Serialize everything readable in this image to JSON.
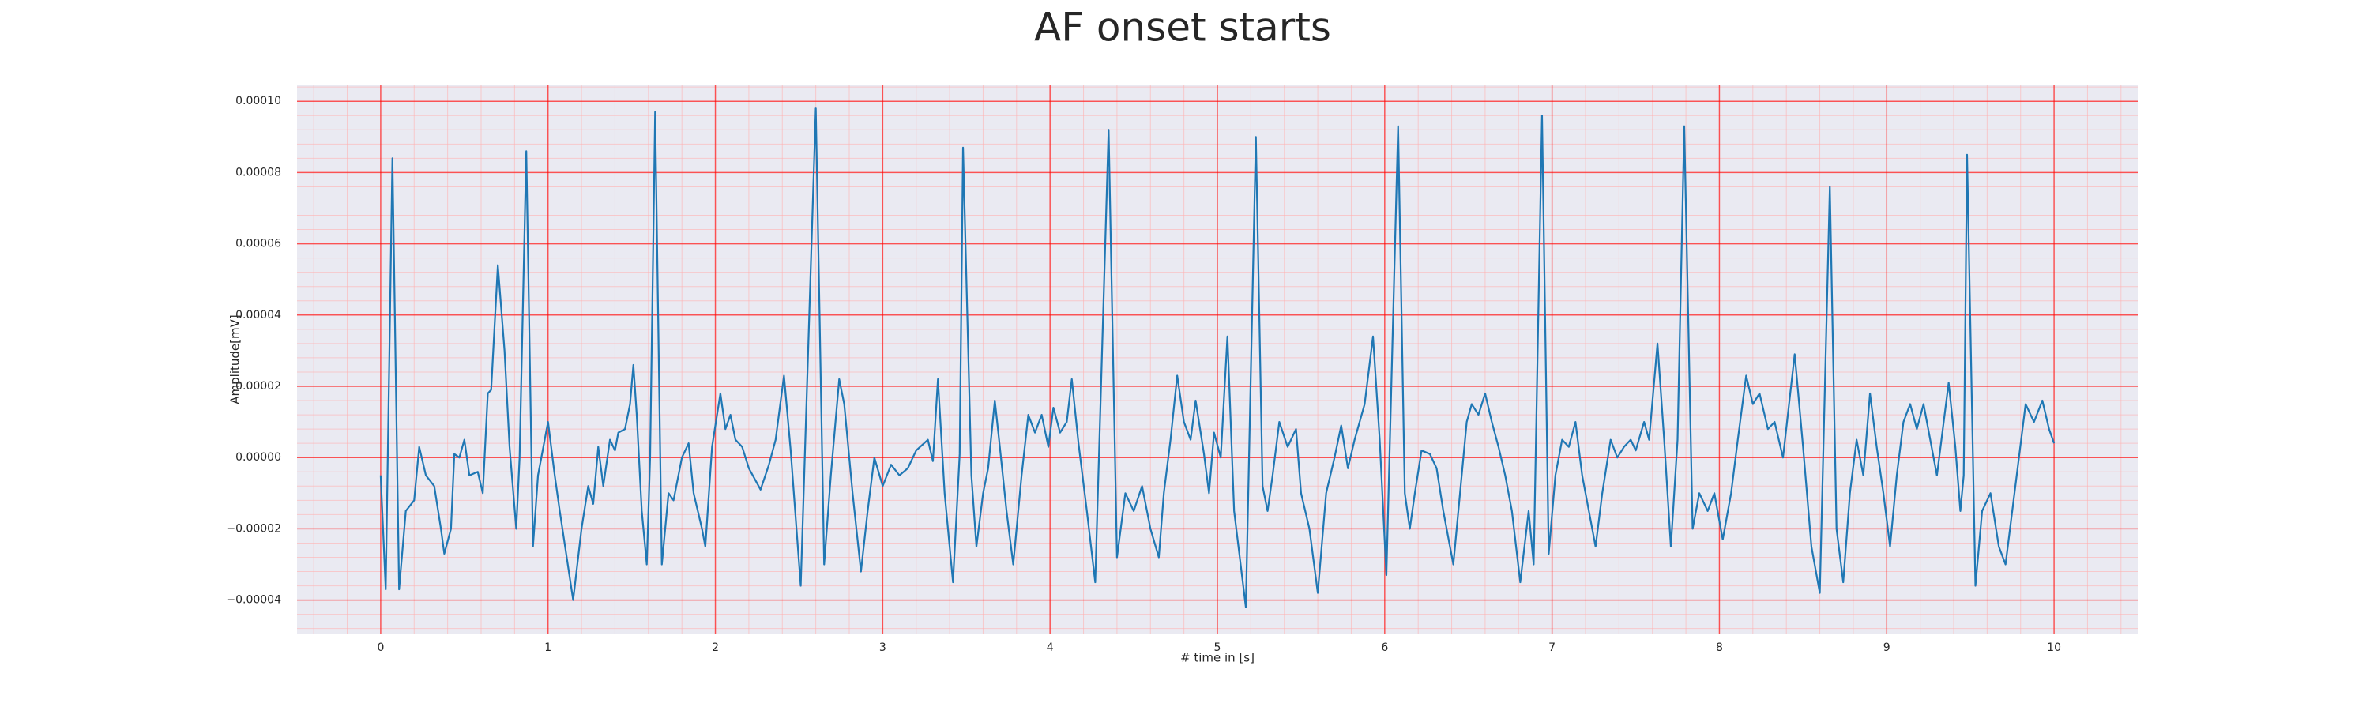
{
  "chart_data": {
    "type": "line",
    "title": "AF onset starts",
    "x_label": "# time in [s]",
    "y_label": "Amplitude[mV]",
    "color": "#1f77b4",
    "background": "#eaeaf2",
    "grid": true,
    "grid_color": "#ff0000",
    "minor_grid": true,
    "minor_grid_color": "#ffb0b0",
    "xlim": [
      -0.5,
      10.5
    ],
    "ylim": [
      -4.94e-05,
      0.0001047
    ],
    "xticks": [
      0,
      1,
      2,
      3,
      4,
      5,
      6,
      7,
      8,
      9,
      10
    ],
    "yticks": [
      {
        "value": -4e-05,
        "label": "−0.00004"
      },
      {
        "value": -2e-05,
        "label": "−0.00002"
      },
      {
        "value": 0,
        "label": "0.00000"
      },
      2e-05,
      4e-05,
      6e-05,
      8e-05,
      {
        "value": 0.0001,
        "label": "0.00010"
      }
    ],
    "x": [
      0,
      0.03,
      0.07,
      0.11,
      0.15,
      0.2,
      0.23,
      0.27,
      0.32,
      0.36,
      0.38,
      0.42,
      0.44,
      0.47,
      0.5,
      0.53,
      0.58,
      0.61,
      0.64,
      0.66,
      0.7,
      0.74,
      0.77,
      0.81,
      0.83,
      0.87,
      0.91,
      0.94,
      1.0,
      1.04,
      1.07,
      1.15,
      1.2,
      1.24,
      1.27,
      1.3,
      1.33,
      1.37,
      1.4,
      1.42,
      1.46,
      1.49,
      1.51,
      1.53,
      1.56,
      1.59,
      1.61,
      1.64,
      1.68,
      1.72,
      1.75,
      1.8,
      1.84,
      1.87,
      1.92,
      1.94,
      1.98,
      2.01,
      2.03,
      2.06,
      2.09,
      2.12,
      2.16,
      2.2,
      2.27,
      2.32,
      2.36,
      2.41,
      2.45,
      2.51,
      2.6,
      2.65,
      2.69,
      2.74,
      2.77,
      2.82,
      2.87,
      2.91,
      2.95,
      3.0,
      3.05,
      3.1,
      3.15,
      3.2,
      3.27,
      3.3,
      3.33,
      3.37,
      3.42,
      3.46,
      3.48,
      3.53,
      3.56,
      3.6,
      3.63,
      3.67,
      3.7,
      3.74,
      3.78,
      3.83,
      3.87,
      3.91,
      3.95,
      3.99,
      4.02,
      4.06,
      4.1,
      4.13,
      4.17,
      4.22,
      4.27,
      4.35,
      4.4,
      4.45,
      4.5,
      4.55,
      4.6,
      4.65,
      4.68,
      4.72,
      4.76,
      4.8,
      4.84,
      4.87,
      4.92,
      4.95,
      4.98,
      5.02,
      5.06,
      5.1,
      5.17,
      5.23,
      5.27,
      5.3,
      5.33,
      5.37,
      5.42,
      5.47,
      5.5,
      5.55,
      5.6,
      5.65,
      5.7,
      5.74,
      5.78,
      5.82,
      5.88,
      5.93,
      5.97,
      6.01,
      6.08,
      6.12,
      6.15,
      6.18,
      6.22,
      6.27,
      6.31,
      6.35,
      6.41,
      6.45,
      6.49,
      6.52,
      6.56,
      6.6,
      6.64,
      6.68,
      6.72,
      6.76,
      6.81,
      6.86,
      6.89,
      6.94,
      6.98,
      7.02,
      7.06,
      7.1,
      7.14,
      7.18,
      7.22,
      7.26,
      7.3,
      7.35,
      7.39,
      7.43,
      7.47,
      7.5,
      7.55,
      7.58,
      7.63,
      7.67,
      7.71,
      7.75,
      7.79,
      7.84,
      7.88,
      7.93,
      7.97,
      8.02,
      8.07,
      8.11,
      8.16,
      8.2,
      8.24,
      8.29,
      8.33,
      8.38,
      8.45,
      8.5,
      8.55,
      8.6,
      8.66,
      8.7,
      8.74,
      8.78,
      8.82,
      8.86,
      8.9,
      8.94,
      8.98,
      9.02,
      9.06,
      9.1,
      9.14,
      9.18,
      9.22,
      9.26,
      9.3,
      9.37,
      9.41,
      9.44,
      9.46,
      9.48,
      9.53,
      9.57,
      9.62,
      9.67,
      9.71,
      9.75,
      9.79,
      9.83,
      9.88,
      9.93,
      9.97,
      10.0
    ],
    "values": [
      -5e-06,
      -3.7e-05,
      8.4e-05,
      -3.7e-05,
      -1.5e-05,
      -1.2e-05,
      3e-06,
      -5e-06,
      -8e-06,
      -2e-05,
      -2.7e-05,
      -2e-05,
      1e-06,
      0,
      5e-06,
      -5e-06,
      -4e-06,
      -1e-05,
      1.8e-05,
      1.9e-05,
      5.4e-05,
      3e-05,
      3e-06,
      -2e-05,
      0,
      8.6e-05,
      -2.5e-05,
      -5e-06,
      1e-05,
      -5e-06,
      -1.5e-05,
      -4e-05,
      -2e-05,
      -8e-06,
      -1.3e-05,
      3e-06,
      -8e-06,
      5e-06,
      2e-06,
      7e-06,
      8e-06,
      1.5e-05,
      2.6e-05,
      1.2e-05,
      -1.5e-05,
      -3e-05,
      0,
      9.7e-05,
      -3e-05,
      -1e-05,
      -1.2e-05,
      0,
      4e-06,
      -1e-05,
      -2e-05,
      -2.5e-05,
      3e-06,
      1.2e-05,
      1.8e-05,
      8e-06,
      1.2e-05,
      5e-06,
      3e-06,
      -3e-06,
      -9e-06,
      -2e-06,
      5e-06,
      2.3e-05,
      2e-06,
      -3.6e-05,
      9.8e-05,
      -3e-05,
      -5e-06,
      2.2e-05,
      1.5e-05,
      -1e-05,
      -3.2e-05,
      -1.5e-05,
      0,
      -8e-06,
      -2e-06,
      -5e-06,
      -3e-06,
      2e-06,
      5e-06,
      -1e-06,
      2.2e-05,
      -1e-05,
      -3.5e-05,
      1e-06,
      8.7e-05,
      -5e-06,
      -2.5e-05,
      -1e-05,
      -3e-06,
      1.6e-05,
      3e-06,
      -1.5e-05,
      -3e-05,
      -5e-06,
      1.2e-05,
      7e-06,
      1.2e-05,
      3e-06,
      1.4e-05,
      7e-06,
      1e-05,
      2.2e-05,
      4e-06,
      -1.5e-05,
      -3.5e-05,
      9.2e-05,
      -2.8e-05,
      -1e-05,
      -1.5e-05,
      -8e-06,
      -2e-05,
      -2.8e-05,
      -1e-05,
      5e-06,
      2.3e-05,
      1e-05,
      5e-06,
      1.6e-05,
      1e-06,
      -1e-05,
      7e-06,
      0,
      3.4e-05,
      -1.5e-05,
      -4.2e-05,
      9e-05,
      -8e-06,
      -1.5e-05,
      -5e-06,
      1e-05,
      3e-06,
      8e-06,
      -1e-05,
      -2e-05,
      -3.8e-05,
      -1e-05,
      0,
      9e-06,
      -3e-06,
      5e-06,
      1.5e-05,
      3.4e-05,
      5e-06,
      -3.3e-05,
      9.3e-05,
      -1e-05,
      -2e-05,
      -1e-05,
      2e-06,
      1e-06,
      -3e-06,
      -1.5e-05,
      -3e-05,
      -1e-05,
      1e-05,
      1.5e-05,
      1.2e-05,
      1.8e-05,
      1e-05,
      3e-06,
      -5e-06,
      -1.5e-05,
      -3.5e-05,
      -1.5e-05,
      -3e-05,
      9.6e-05,
      -2.7e-05,
      -5e-06,
      5e-06,
      3e-06,
      1e-05,
      -5e-06,
      -1.5e-05,
      -2.5e-05,
      -1e-05,
      5e-06,
      0,
      3e-06,
      5e-06,
      2e-06,
      1e-05,
      5e-06,
      3.2e-05,
      5e-06,
      -2.5e-05,
      5e-06,
      9.3e-05,
      -2e-05,
      -1e-05,
      -1.5e-05,
      -1e-05,
      -2.3e-05,
      -1e-05,
      5e-06,
      2.3e-05,
      1.5e-05,
      1.8e-05,
      8e-06,
      1e-05,
      0,
      2.9e-05,
      3e-06,
      -2.5e-05,
      -3.8e-05,
      7.6e-05,
      -2e-05,
      -3.5e-05,
      -1e-05,
      5e-06,
      -5e-06,
      1.8e-05,
      3e-06,
      -1e-05,
      -2.5e-05,
      -5e-06,
      1e-05,
      1.5e-05,
      8e-06,
      1.5e-05,
      5e-06,
      -5e-06,
      2.1e-05,
      3e-06,
      -1.5e-05,
      -5e-06,
      8.5e-05,
      -3.6e-05,
      -1.5e-05,
      -1e-05,
      -2.5e-05,
      -3e-05,
      -1.5e-05,
      0,
      1.5e-05,
      1e-05,
      1.6e-05,
      8e-06,
      4e-06
    ]
  }
}
